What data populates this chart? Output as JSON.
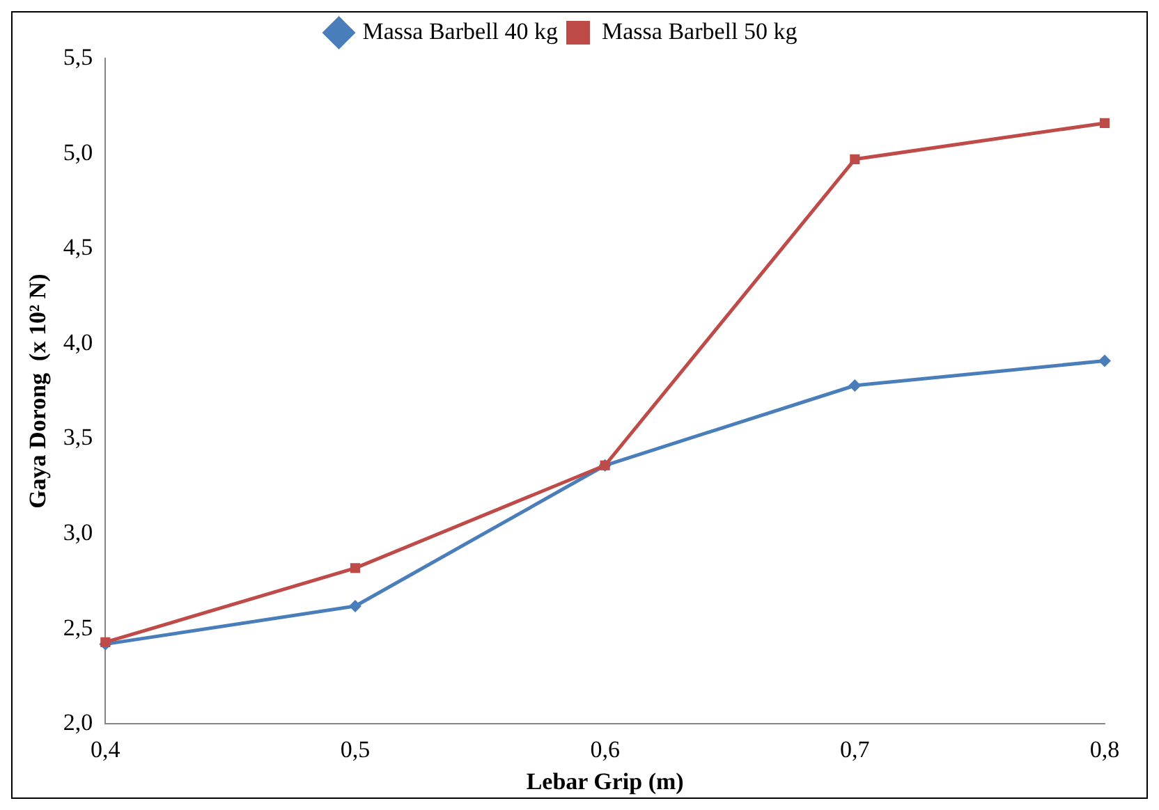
{
  "chart_data": {
    "type": "line",
    "xlabel": "Lebar Grip (m)",
    "ylabel": "Gaya Dorong  (x 10² N)",
    "categories": [
      "0,4",
      "0,5",
      "0,6",
      "0,7",
      "0,8"
    ],
    "series": [
      {
        "name": "Massa Barbell 40 kg",
        "color": "#4a7ebb",
        "marker": "diamond",
        "values": [
          2.42,
          2.62,
          3.36,
          3.78,
          3.91
        ]
      },
      {
        "name": "Massa Barbell 50 kg",
        "color": "#be4b48",
        "marker": "square",
        "values": [
          2.43,
          2.82,
          3.36,
          4.97,
          5.16
        ]
      }
    ],
    "ylim": [
      2.0,
      5.5
    ],
    "yticks": [
      {
        "value": 2.0,
        "label": "2,0"
      },
      {
        "value": 2.5,
        "label": "2,5"
      },
      {
        "value": 3.0,
        "label": "3,0"
      },
      {
        "value": 3.5,
        "label": "3,5"
      },
      {
        "value": 4.0,
        "label": "4,0"
      },
      {
        "value": 4.5,
        "label": "4,5"
      },
      {
        "value": 5.0,
        "label": "5,0"
      },
      {
        "value": 5.5,
        "label": "5,5"
      }
    ],
    "grid": false,
    "legend": "top",
    "line_style": "solid"
  }
}
